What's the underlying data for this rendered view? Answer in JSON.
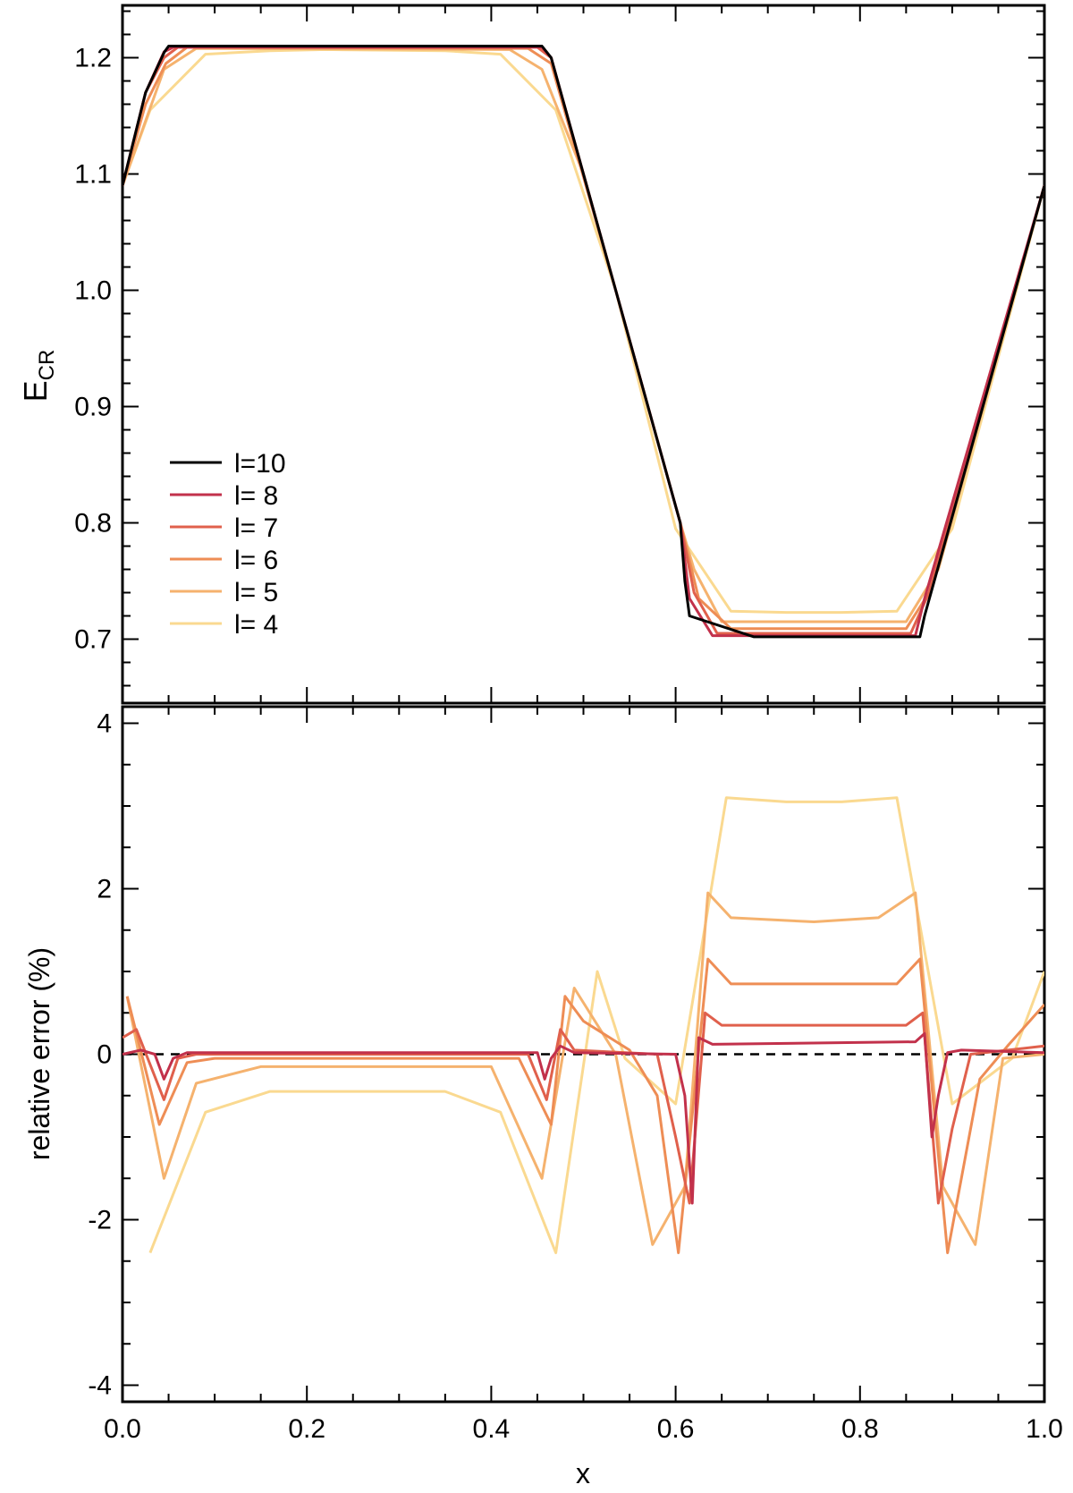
{
  "chart_data": [
    {
      "type": "line",
      "panel": "top",
      "title": "",
      "xlabel": "",
      "ylabel_main": "E",
      "ylabel_sub": "CR",
      "xlim": [
        0.0,
        1.0
      ],
      "ylim": [
        0.645,
        1.245
      ],
      "yticks": [
        0.7,
        0.8,
        0.9,
        1.0,
        1.1,
        1.2
      ],
      "ytick_labels": [
        "0.7",
        "0.8",
        "0.9",
        "1.0",
        "1.1",
        "1.2"
      ],
      "yminor_step": 0.02,
      "xticks": [
        0.0,
        0.2,
        0.4,
        0.6,
        0.8,
        1.0
      ],
      "xminor_step": 0.05,
      "legend_position": "lower-left",
      "series": [
        {
          "name": "l=10",
          "legend_label": "l=10",
          "color": "#000000",
          "x": [
            0.0,
            0.025,
            0.0455,
            0.05,
            0.455,
            0.46,
            0.465,
            0.535,
            0.605,
            0.61,
            0.615,
            0.685,
            0.695,
            0.86,
            0.865,
            0.87,
            1.0
          ],
          "y": [
            1.09,
            1.17,
            1.205,
            1.21,
            1.21,
            1.205,
            1.2,
            1.0,
            0.8,
            0.75,
            0.72,
            0.702,
            0.702,
            0.702,
            0.702,
            0.72,
            1.09
          ]
        },
        {
          "name": "l= 8",
          "legend_label": "l= 8",
          "color": "#c2314b",
          "x": [
            0.0,
            0.025,
            0.045,
            0.055,
            0.455,
            0.465,
            0.535,
            0.605,
            0.615,
            0.64,
            0.86,
            0.87,
            1.0
          ],
          "y": [
            1.09,
            1.17,
            1.205,
            1.209,
            1.209,
            1.2,
            1.0,
            0.8,
            0.735,
            0.703,
            0.703,
            0.735,
            1.09
          ]
        },
        {
          "name": "l= 7",
          "legend_label": "l= 7",
          "color": "#e0604c",
          "x": [
            0.0,
            0.025,
            0.045,
            0.06,
            0.45,
            0.465,
            0.535,
            0.605,
            0.62,
            0.645,
            0.855,
            0.875,
            1.0
          ],
          "y": [
            1.09,
            1.17,
            1.2,
            1.209,
            1.209,
            1.2,
            1.0,
            0.8,
            0.74,
            0.705,
            0.705,
            0.74,
            1.09
          ]
        },
        {
          "name": "l= 6",
          "legend_label": "l= 6",
          "color": "#ee8d55",
          "x": [
            0.0,
            0.025,
            0.047,
            0.07,
            0.44,
            0.465,
            0.535,
            0.605,
            0.625,
            0.66,
            0.85,
            0.875,
            1.0
          ],
          "y": [
            1.09,
            1.16,
            1.195,
            1.209,
            1.208,
            1.195,
            1.0,
            0.8,
            0.735,
            0.709,
            0.709,
            0.74,
            1.09
          ]
        },
        {
          "name": "l= 5",
          "legend_label": "l= 5",
          "color": "#f5b26e",
          "x": [
            0.0,
            0.045,
            0.08,
            0.42,
            0.455,
            0.5,
            0.535,
            0.605,
            0.62,
            0.65,
            0.85,
            0.885,
            1.0
          ],
          "y": [
            1.09,
            1.19,
            1.208,
            1.207,
            1.19,
            1.1,
            1.0,
            0.8,
            0.76,
            0.715,
            0.715,
            0.76,
            1.09
          ]
        },
        {
          "name": "l= 4",
          "legend_label": "l= 4",
          "color": "#fad990",
          "x": [
            0.0,
            0.03,
            0.09,
            0.16,
            0.22,
            0.35,
            0.41,
            0.47,
            0.535,
            0.6,
            0.66,
            0.72,
            0.78,
            0.84,
            0.9,
            1.0
          ],
          "y": [
            1.09,
            1.155,
            1.203,
            1.206,
            1.207,
            1.206,
            1.203,
            1.155,
            1.0,
            0.795,
            0.724,
            0.723,
            0.723,
            0.724,
            0.795,
            1.09
          ]
        }
      ]
    },
    {
      "type": "line",
      "panel": "bottom",
      "title": "",
      "xlabel": "x",
      "ylabel": "relative error (%)",
      "xlim": [
        0.0,
        1.0
      ],
      "ylim": [
        -4.2,
        4.2
      ],
      "yticks": [
        -4,
        -2,
        0,
        2,
        4
      ],
      "ytick_labels": [
        "-4",
        "-2",
        "0",
        "2",
        "4"
      ],
      "yminor_step": 0.5,
      "xticks": [
        0.0,
        0.2,
        0.4,
        0.6,
        0.8,
        1.0
      ],
      "xtick_labels": [
        "0.0",
        "0.2",
        "0.4",
        "0.6",
        "0.8",
        "1.0"
      ],
      "xminor_step": 0.05,
      "reference_line": {
        "y": 0,
        "style": "dashed",
        "color": "#000000"
      },
      "series": [
        {
          "name": "l= 8",
          "color": "#c2314b",
          "x": [
            0.0,
            0.02,
            0.035,
            0.045,
            0.055,
            0.07,
            0.45,
            0.458,
            0.465,
            0.475,
            0.49,
            0.6,
            0.61,
            0.618,
            0.625,
            0.64,
            0.86,
            0.87,
            0.878,
            0.885,
            0.895,
            0.91,
            1.0
          ],
          "y": [
            0.0,
            0.05,
            0.0,
            -0.3,
            -0.05,
            0.02,
            0.02,
            -0.3,
            -0.05,
            0.1,
            0.02,
            0.0,
            -0.5,
            -1.8,
            0.2,
            0.12,
            0.15,
            0.25,
            -1.0,
            -0.5,
            0.02,
            0.05,
            0.02
          ]
        },
        {
          "name": "l= 7",
          "color": "#e0604c",
          "x": [
            0.0,
            0.015,
            0.045,
            0.06,
            0.08,
            0.44,
            0.46,
            0.475,
            0.49,
            0.58,
            0.6,
            0.615,
            0.632,
            0.65,
            0.85,
            0.868,
            0.885,
            0.9,
            0.92,
            1.0
          ],
          "y": [
            0.2,
            0.3,
            -0.55,
            -0.05,
            0.0,
            0.0,
            -0.55,
            0.3,
            0.05,
            0.0,
            -1.0,
            -1.8,
            0.5,
            0.35,
            0.35,
            0.5,
            -1.8,
            -0.9,
            0.0,
            0.1
          ]
        },
        {
          "name": "l= 6",
          "color": "#ee8d55",
          "x": [
            0.005,
            0.04,
            0.07,
            0.1,
            0.43,
            0.465,
            0.48,
            0.5,
            0.55,
            0.58,
            0.603,
            0.635,
            0.66,
            0.84,
            0.865,
            0.895,
            0.93,
            0.96,
            1.0
          ],
          "y": [
            0.7,
            -0.85,
            -0.1,
            -0.05,
            -0.05,
            -0.85,
            0.7,
            0.4,
            0.05,
            -0.5,
            -2.4,
            1.15,
            0.85,
            0.85,
            1.15,
            -2.4,
            -0.3,
            0.1,
            0.6
          ]
        },
        {
          "name": "l= 5",
          "color": "#f5b26e",
          "x": [
            0.005,
            0.045,
            0.08,
            0.15,
            0.4,
            0.455,
            0.49,
            0.535,
            0.575,
            0.61,
            0.635,
            0.66,
            0.75,
            0.82,
            0.86,
            0.89,
            0.925,
            0.955,
            1.0
          ],
          "y": [
            0.7,
            -1.5,
            -0.35,
            -0.15,
            -0.15,
            -1.5,
            0.8,
            0.0,
            -2.3,
            -1.6,
            1.95,
            1.65,
            1.6,
            1.65,
            1.95,
            -1.6,
            -2.3,
            -0.05,
            0.0
          ]
        },
        {
          "name": "l= 4",
          "color": "#fad990",
          "x": [
            0.03,
            0.09,
            0.16,
            0.22,
            0.35,
            0.41,
            0.47,
            0.515,
            0.545,
            0.6,
            0.655,
            0.72,
            0.78,
            0.84,
            0.9,
            0.965,
            1.0
          ],
          "y": [
            -2.4,
            -0.7,
            -0.45,
            -0.45,
            -0.45,
            -0.7,
            -2.4,
            1.0,
            -0.05,
            -0.6,
            3.1,
            3.05,
            3.05,
            3.1,
            -0.6,
            -0.05,
            1.0
          ]
        }
      ]
    }
  ]
}
